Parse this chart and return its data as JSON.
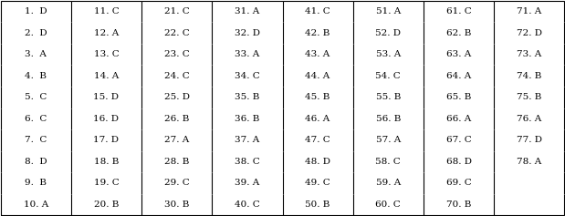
{
  "columns": [
    [
      "1.  D",
      "2.  D",
      "3.  A",
      "4.  B",
      "5.  C",
      "6.  C",
      "7.  C",
      "8.  D",
      "9.  B",
      "10. A"
    ],
    [
      "11. C",
      "12. A",
      "13. C",
      "14. A",
      "15. D",
      "16. D",
      "17. D",
      "18. B",
      "19. C",
      "20. B"
    ],
    [
      "21. C",
      "22. C",
      "23. C",
      "24. C",
      "25. D",
      "26. B",
      "27. A",
      "28. B",
      "29. C",
      "30. B"
    ],
    [
      "31. A",
      "32. D",
      "33. A",
      "34. C",
      "35. B",
      "36. B",
      "37. A",
      "38. C",
      "39. A",
      "40. C"
    ],
    [
      "41. C",
      "42. B",
      "43. A",
      "44. A",
      "45. B",
      "46. A",
      "47. C",
      "48. D",
      "49. C",
      "50. B"
    ],
    [
      "51. A",
      "52. D",
      "53. A",
      "54. C",
      "55. B",
      "56. B",
      "57. A",
      "58. C",
      "59. A",
      "60. C"
    ],
    [
      "61. C",
      "62. B",
      "63. A",
      "64. A",
      "65. B",
      "66. A",
      "67. C",
      "68. D",
      "69. C",
      "70. B"
    ],
    [
      "71. A",
      "72. D",
      "73. A",
      "74. B",
      "75. B",
      "76. A",
      "77. D",
      "78. A",
      "",
      ""
    ]
  ],
  "n_rows": 10,
  "n_cols": 8,
  "bg_color": "#ffffff",
  "text_color": "#000000",
  "line_color": "#000000",
  "font_size": 7.5,
  "font_family": "DejaVu Serif"
}
